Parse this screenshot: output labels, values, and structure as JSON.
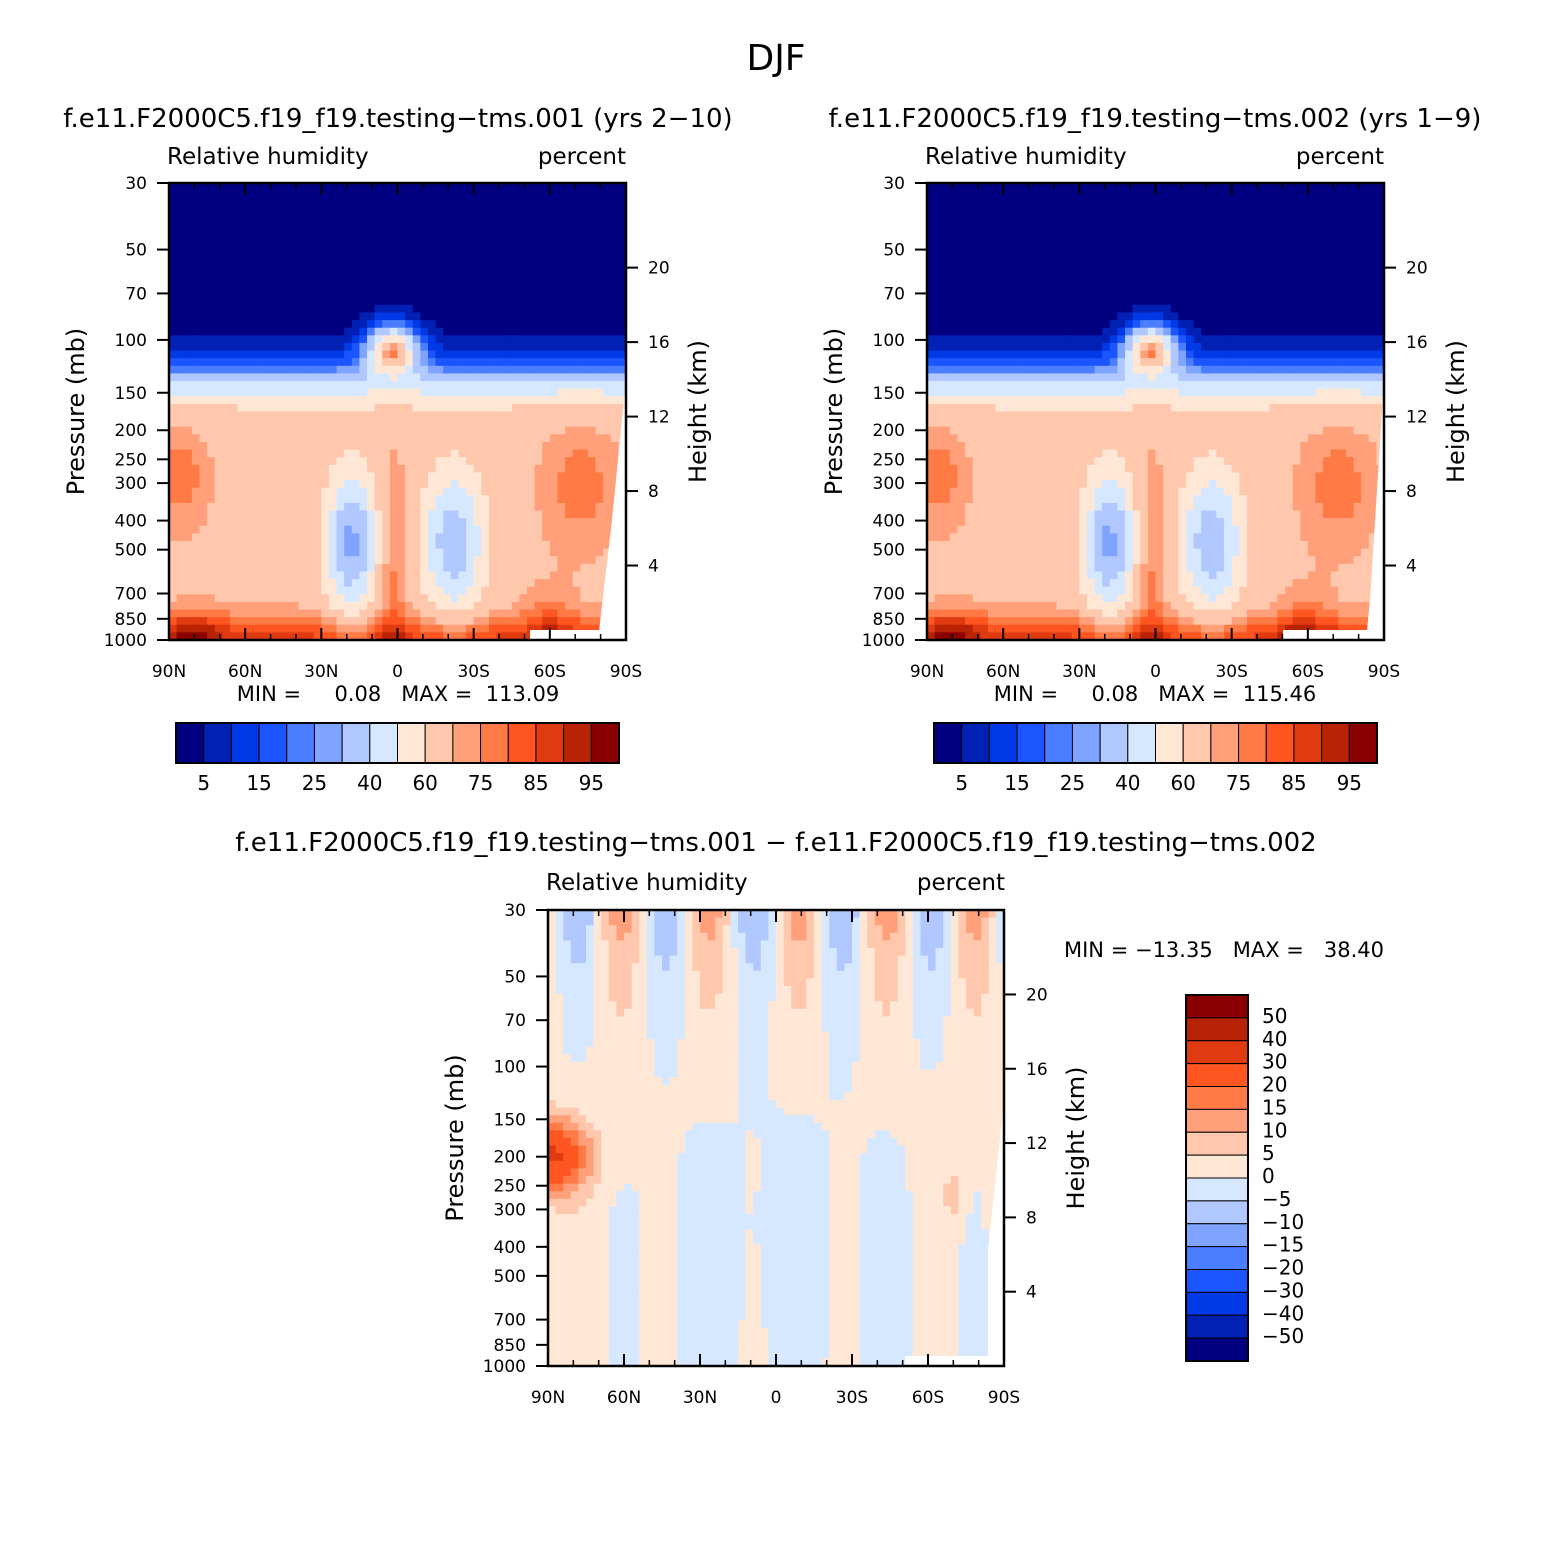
{
  "figure": {
    "title": "DJF"
  },
  "colors": {
    "abs_palette": [
      "#000080",
      "#0021b4",
      "#0039e6",
      "#1a55ff",
      "#4a7dff",
      "#7fa4ff",
      "#b0c8ff",
      "#d6e8ff",
      "#ffe7d6",
      "#ffc8ad",
      "#ffa07a",
      "#ff7a45",
      "#ff5520",
      "#e03a10",
      "#b82205",
      "#8a0000"
    ],
    "diff_palette": [
      "#000080",
      "#0021b4",
      "#0039e6",
      "#1a55ff",
      "#4a7dff",
      "#7fa4ff",
      "#b0c8ff",
      "#d6e8ff",
      "#ffe7d6",
      "#ffc8ad",
      "#ffa07a",
      "#ff7a45",
      "#ff5520",
      "#e03a10",
      "#b82205",
      "#8a0000"
    ]
  },
  "chart_data": [
    {
      "type": "heatmap",
      "title": "f.e11.F2000C5.f19_f19.testing−tms.001 (yrs 2−10)",
      "subtitle_left": "Relative humidity",
      "subtitle_right": "percent",
      "ylabel": "Pressure (mb)",
      "ylabel_right": "Height (km)",
      "x_ticks": [
        "90N",
        "60N",
        "30N",
        "0",
        "30S",
        "60S",
        "90S"
      ],
      "y_ticks": [
        "30",
        "50",
        "70",
        "100",
        "150",
        "200",
        "250",
        "300",
        "400",
        "500",
        "700",
        "850",
        "1000"
      ],
      "y_ticks_right": [
        "20",
        "16",
        "12",
        "8",
        "4"
      ],
      "min_max_text": "MIN =     0.08   MAX =  113.09",
      "colorbar_labels": [
        "5",
        "15",
        "25",
        "40",
        "60",
        "75",
        "85",
        "95"
      ],
      "x_range": [
        -90,
        90
      ],
      "y_range": [
        1000,
        30
      ],
      "y_scale": "log"
    },
    {
      "type": "heatmap",
      "title": "f.e11.F2000C5.f19_f19.testing−tms.002 (yrs 1−9)",
      "subtitle_left": "Relative humidity",
      "subtitle_right": "percent",
      "ylabel": "Pressure (mb)",
      "ylabel_right": "Height (km)",
      "x_ticks": [
        "90N",
        "60N",
        "30N",
        "0",
        "30S",
        "60S",
        "90S"
      ],
      "y_ticks": [
        "30",
        "50",
        "70",
        "100",
        "150",
        "200",
        "250",
        "300",
        "400",
        "500",
        "700",
        "850",
        "1000"
      ],
      "y_ticks_right": [
        "20",
        "16",
        "12",
        "8",
        "4"
      ],
      "min_max_text": "MIN =     0.08   MAX =  115.46",
      "colorbar_labels": [
        "5",
        "15",
        "25",
        "40",
        "60",
        "75",
        "85",
        "95"
      ],
      "x_range": [
        -90,
        90
      ],
      "y_range": [
        1000,
        30
      ],
      "y_scale": "log"
    },
    {
      "type": "heatmap",
      "title": "f.e11.F2000C5.f19_f19.testing−tms.001  −  f.e11.F2000C5.f19_f19.testing−tms.002",
      "subtitle_left": "Relative humidity",
      "subtitle_right": "percent",
      "ylabel": "Pressure (mb)",
      "ylabel_right": "Height (km)",
      "x_ticks": [
        "90N",
        "60N",
        "30N",
        "0",
        "30S",
        "60S",
        "90S"
      ],
      "y_ticks": [
        "30",
        "50",
        "70",
        "100",
        "150",
        "200",
        "250",
        "300",
        "400",
        "500",
        "700",
        "850",
        "1000"
      ],
      "y_ticks_right": [
        "20",
        "16",
        "12",
        "8",
        "4"
      ],
      "min_max_text": "MIN = −13.35   MAX =   38.40",
      "colorbar_labels": [
        "50",
        "40",
        "30",
        "20",
        "15",
        "10",
        "5",
        "0",
        "−5",
        "−10",
        "−15",
        "−20",
        "−30",
        "−40",
        "−50"
      ],
      "x_range": [
        -90,
        90
      ],
      "y_range": [
        1000,
        30
      ],
      "y_scale": "log"
    }
  ]
}
